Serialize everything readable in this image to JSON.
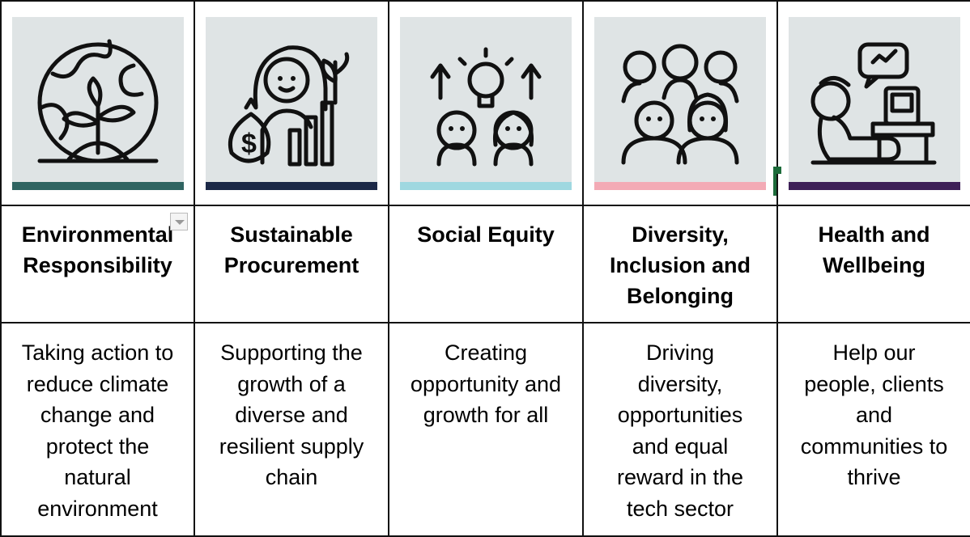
{
  "columns": [
    {
      "icon": "globe-plant-icon",
      "accent_color": "#2f6461",
      "title": [
        "Environmental",
        "Responsibility"
      ],
      "description": [
        "Taking action to",
        "reduce climate",
        "change and",
        "protect the",
        "natural",
        "environment"
      ]
    },
    {
      "icon": "woman-money-growth-icon",
      "accent_color": "#1b2847",
      "title": [
        "Sustainable",
        "Procurement"
      ],
      "description": [
        "Supporting the",
        "growth of a",
        "diverse and",
        "resilient supply",
        "chain"
      ]
    },
    {
      "icon": "people-idea-growth-icon",
      "accent_color": "#9fd8e0",
      "title": [
        "Social Equity"
      ],
      "description": [
        "Creating",
        "opportunity and",
        "growth for all"
      ]
    },
    {
      "icon": "diverse-group-icon",
      "accent_color": "#f3aab5",
      "title": [
        "Diversity,",
        "Inclusion and",
        "Belonging"
      ],
      "description": [
        "Driving",
        "diversity,",
        "opportunities",
        "and equal",
        "reward in the",
        "tech sector"
      ]
    },
    {
      "icon": "person-relaxing-computer-icon",
      "accent_color": "#3d1f57",
      "title": [
        "Health and",
        "Wellbeing"
      ],
      "description": [
        "Help our",
        "people, clients",
        "and",
        "communities to",
        "thrive"
      ]
    }
  ]
}
